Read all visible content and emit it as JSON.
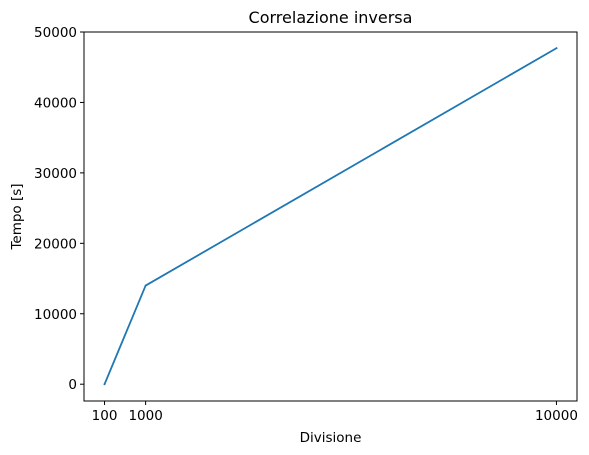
{
  "chart_data": {
    "type": "line",
    "title": "Correlazione inversa",
    "xlabel": "Divisione",
    "ylabel": "Tempo [s]",
    "xlim": [
      -350,
      10450
    ],
    "ylim": [
      -2385,
      50000
    ],
    "x_ticks": [
      100,
      1000,
      10000
    ],
    "x_tick_labels": [
      "100",
      "1000",
      "10000"
    ],
    "y_ticks": [
      0,
      10000,
      20000,
      30000,
      40000,
      50000
    ],
    "y_tick_labels": [
      "0",
      "10000",
      "20000",
      "30000",
      "40000",
      "50000"
    ],
    "grid": false,
    "legend": "none",
    "series": [
      {
        "color": "#1f77b4",
        "x": [
          100,
          1000,
          10000
        ],
        "y": [
          0,
          14000,
          47700
        ]
      }
    ]
  }
}
